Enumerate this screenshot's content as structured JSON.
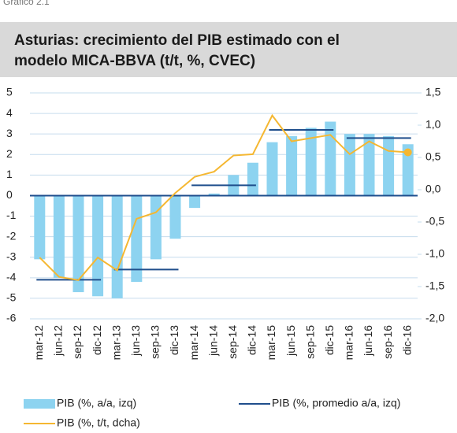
{
  "chart_data": {
    "type": "combo",
    "figure_label": "Gráfico 2.1",
    "title": [
      "Asturias: crecimiento del PIB estimado con el",
      "modelo MICA-BBVA (t/t, %, CVEC)"
    ],
    "categories": [
      "mar-12",
      "jun-12",
      "sep-12",
      "dic-12",
      "mar-13",
      "jun-13",
      "sep-13",
      "dic-13",
      "mar-14",
      "jun-14",
      "sep-14",
      "dic-14",
      "mar-15",
      "jun-15",
      "sep-15",
      "dic-15",
      "mar-16",
      "jun-16",
      "sep-16",
      "dic-16"
    ],
    "series": [
      {
        "name": "PIB (%, a/a, izq)",
        "type": "bar",
        "color": "#8dd3f0",
        "values": [
          -3.1,
          -4.0,
          -4.7,
          -4.9,
          -5.0,
          -4.2,
          -3.1,
          -2.1,
          -0.6,
          0.1,
          1.0,
          1.6,
          2.6,
          2.9,
          3.3,
          3.6,
          3.0,
          3.0,
          2.9,
          2.5
        ]
      },
      {
        "name": "PIB (%, promedio a/a, izq)",
        "type": "step",
        "color": "#1f4e8c",
        "values": [
          -4.1,
          -4.1,
          -4.1,
          -4.1,
          -3.6,
          -3.6,
          -3.6,
          -3.6,
          0.5,
          0.5,
          0.5,
          0.5,
          3.2,
          3.2,
          3.2,
          3.2,
          2.8,
          2.8,
          2.8,
          2.8
        ]
      },
      {
        "name": "PIB (%, t/t, dcha)",
        "type": "line",
        "axis": "y2",
        "color": "#f5b731",
        "values": [
          -1.05,
          -1.35,
          -1.4,
          -1.05,
          -1.25,
          -0.45,
          -0.35,
          -0.05,
          0.2,
          0.28,
          0.53,
          0.55,
          1.15,
          0.75,
          0.8,
          0.85,
          0.55,
          0.75,
          0.6,
          0.58
        ]
      }
    ],
    "ylim": [
      -6,
      5
    ],
    "yticks": [
      -6,
      -5,
      -4,
      -3,
      -2,
      -1,
      0,
      1,
      2,
      3,
      4,
      5
    ],
    "y2lim": [
      -2.0,
      1.5
    ],
    "y2ticks": [
      {
        "value": -2.0,
        "label": "-2,0"
      },
      {
        "value": -1.5,
        "label": "-1,5"
      },
      {
        "value": -1.0,
        "label": "-1,0"
      },
      {
        "value": -0.5,
        "label": "-0,5"
      },
      {
        "value": 0.0,
        "label": "0,0"
      },
      {
        "value": 0.5,
        "label": "0,5"
      },
      {
        "value": 1.0,
        "label": "1,0"
      },
      {
        "value": 1.5,
        "label": "1,5"
      }
    ],
    "grid": true,
    "grid_color": "#c6dced"
  }
}
